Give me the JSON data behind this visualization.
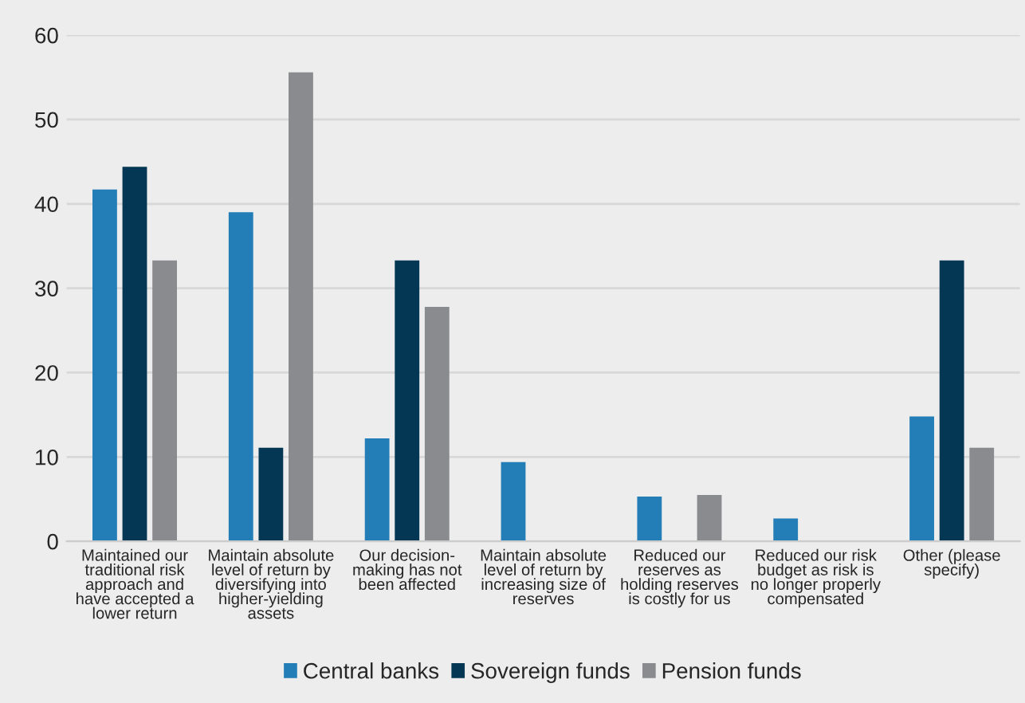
{
  "chart_data": {
    "type": "bar",
    "categories": [
      "Maintained our\ntraditional risk\napproach and\nhave accepted a\nlower return",
      "Maintain absolute\nlevel of return by\ndiversifying into\nhigher-yielding\nassets",
      "Our decision-\nmaking has not\nbeen affected",
      "Maintain absolute\nlevel of return by\nincreasing size of\nreserves",
      "Reduced our\nreserves as\nholding reserves\nis costly for us",
      "Reduced our risk\nbudget as risk is\nno longer properly\ncompensated",
      "Other (please\nspecify)"
    ],
    "series": [
      {
        "name": "Central banks",
        "color": "#237db6",
        "values": [
          41.7,
          39.0,
          12.2,
          9.4,
          5.3,
          2.7,
          14.8
        ]
      },
      {
        "name": "Sovereign funds",
        "color": "#043754",
        "values": [
          44.4,
          11.1,
          33.3,
          null,
          null,
          null,
          33.3
        ]
      },
      {
        "name": "Pension funds",
        "color": "#898b8f",
        "values": [
          33.3,
          55.6,
          27.8,
          null,
          5.5,
          null,
          11.1
        ]
      }
    ],
    "ylim": [
      0,
      60
    ],
    "yticks": [
      0,
      10,
      20,
      30,
      40,
      50,
      60
    ],
    "grid": "y",
    "legend": "bottom"
  }
}
